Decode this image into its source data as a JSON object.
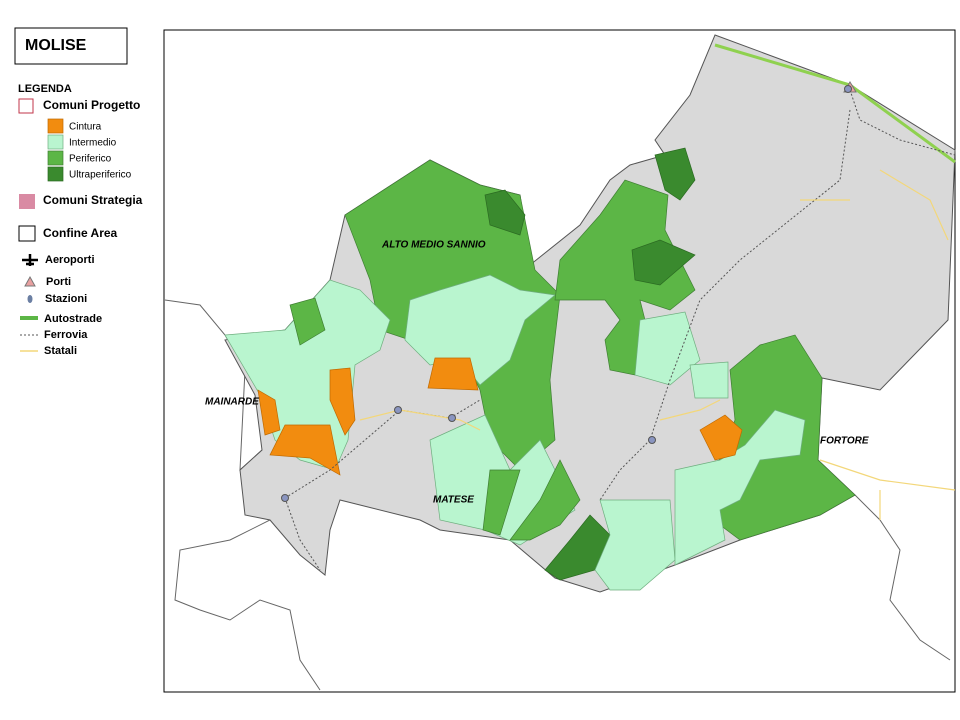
{
  "title": "MOLISE",
  "legend": {
    "heading": "LEGENDA",
    "items": [
      "Comuni Progetto",
      "Cintura",
      "Intermedio",
      "Periferico",
      "Ultraperiferico",
      "Comuni Strategia",
      "Confine Area",
      "Aeroporti",
      "Porti",
      "Stazioni",
      "Autostrade",
      "Ferrovia",
      "Statali"
    ]
  },
  "map_labels": [
    "ALTO MEDIO SANNIO",
    "MAINARDE",
    "MATESE",
    "FORTORE"
  ]
}
